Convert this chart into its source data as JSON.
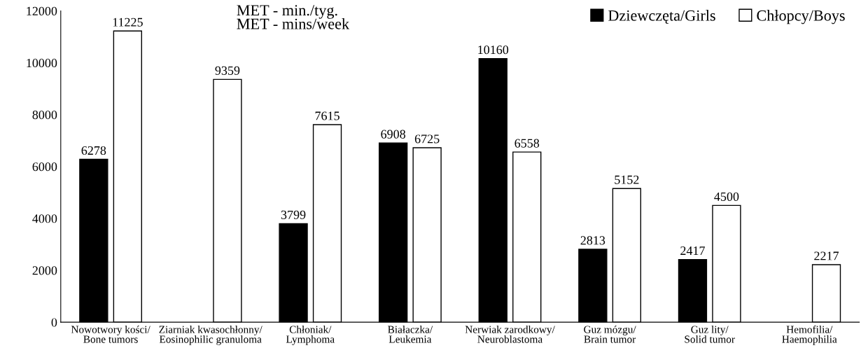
{
  "chart_data": {
    "type": "bar",
    "categories": [
      "Nowotwory kości/\nBone tumors",
      "Ziarniak kwasochłonny/\nEosinophilic granuloma",
      "Chłoniak/\nLymphoma",
      "Białaczka/\nLeukemia",
      "Nerwiak zarodkowy/\nNeuroblastoma",
      "Guz mózgu/\nBrain tumor",
      "Guz lity/\nSolid tumor",
      "Hemofilia/\nHaemophilia"
    ],
    "series": [
      {
        "name": "Dziewczęta/Girls",
        "color": "#000000",
        "values": [
          6278,
          null,
          3799,
          6908,
          10160,
          2813,
          2417,
          null
        ]
      },
      {
        "name": "Chłopcy/Boys",
        "color": "#ffffff",
        "values": [
          11225,
          9359,
          7615,
          6725,
          6558,
          5152,
          4500,
          2217
        ]
      }
    ],
    "ylim": [
      0,
      12000
    ],
    "yticks": [
      0,
      2000,
      4000,
      6000,
      8000,
      10000,
      12000
    ],
    "annotations": [
      "MET - min./tyg.\nMET - mins/week"
    ],
    "data_labels": true,
    "legend": "top right",
    "grid": false
  }
}
